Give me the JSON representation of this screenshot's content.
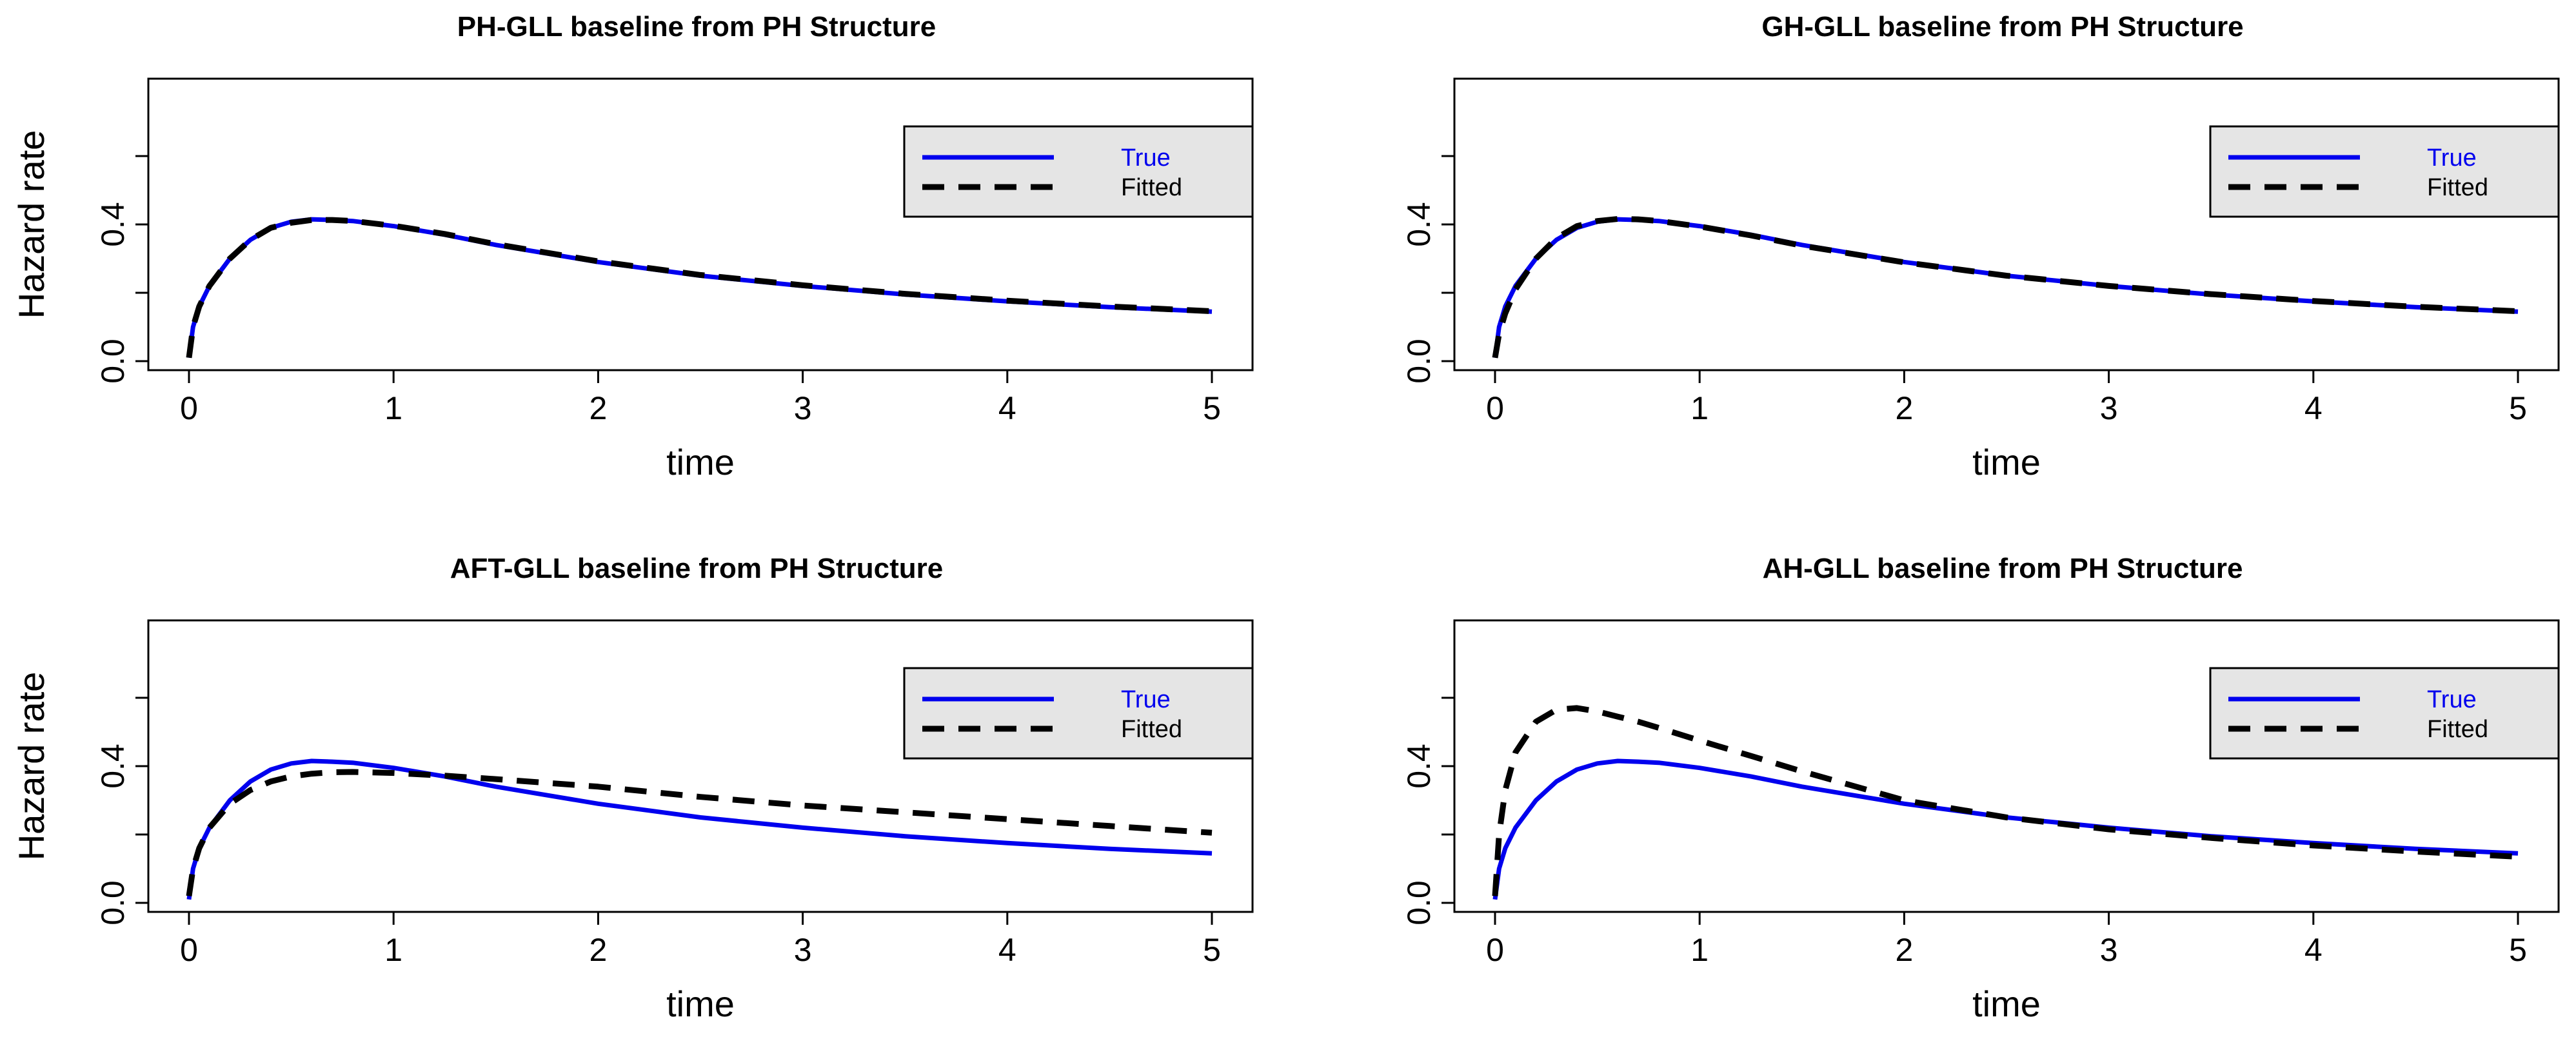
{
  "colors": {
    "true_line": "#0000ee",
    "fitted_line": "#000000",
    "legend_bg": "#e5e5e5"
  },
  "chart_data": [
    {
      "type": "line",
      "title": "PH-GLL baseline from PH Structure",
      "xlabel": "time",
      "ylabel": "Hazard rate",
      "xlim": [
        0,
        5
      ],
      "ylim": [
        0,
        0.8
      ],
      "xticks": [
        "0",
        "1",
        "2",
        "3",
        "4",
        "5"
      ],
      "yticks": [
        "0.0",
        "0.4"
      ],
      "legend_position": "top-right",
      "x": [
        0,
        0.02,
        0.05,
        0.1,
        0.2,
        0.3,
        0.4,
        0.5,
        0.6,
        0.7,
        0.8,
        1.0,
        1.25,
        1.5,
        2.0,
        2.5,
        3.0,
        3.5,
        4.0,
        4.5,
        5.0
      ],
      "series": [
        {
          "name": "True",
          "style": "solid",
          "values": [
            0.01,
            0.1,
            0.16,
            0.22,
            0.3,
            0.355,
            0.39,
            0.408,
            0.415,
            0.413,
            0.41,
            0.395,
            0.37,
            0.34,
            0.29,
            0.25,
            0.22,
            0.195,
            0.175,
            0.158,
            0.145
          ]
        },
        {
          "name": "Fitted",
          "style": "dashed",
          "values": [
            0.01,
            0.1,
            0.16,
            0.22,
            0.3,
            0.355,
            0.39,
            0.405,
            0.413,
            0.413,
            0.41,
            0.396,
            0.372,
            0.342,
            0.292,
            0.252,
            0.222,
            0.197,
            0.177,
            0.16,
            0.146
          ]
        }
      ]
    },
    {
      "type": "line",
      "title": "GH-GLL baseline from PH Structure",
      "xlabel": "time",
      "ylabel": "Hazard rate",
      "xlim": [
        0,
        5
      ],
      "ylim": [
        0,
        0.8
      ],
      "xticks": [
        "0",
        "1",
        "2",
        "3",
        "4",
        "5"
      ],
      "yticks": [
        "0.0",
        "0.4"
      ],
      "legend_position": "top-right",
      "x": [
        0,
        0.02,
        0.05,
        0.1,
        0.2,
        0.3,
        0.4,
        0.5,
        0.6,
        0.7,
        0.8,
        1.0,
        1.25,
        1.5,
        2.0,
        2.5,
        3.0,
        3.5,
        4.0,
        4.5,
        5.0
      ],
      "series": [
        {
          "name": "True",
          "style": "solid",
          "values": [
            0.01,
            0.1,
            0.16,
            0.22,
            0.3,
            0.355,
            0.39,
            0.408,
            0.415,
            0.413,
            0.41,
            0.395,
            0.37,
            0.34,
            0.29,
            0.25,
            0.22,
            0.195,
            0.175,
            0.158,
            0.145
          ]
        },
        {
          "name": "Fitted",
          "style": "dashed",
          "values": [
            0.01,
            0.08,
            0.14,
            0.21,
            0.3,
            0.36,
            0.395,
            0.41,
            0.416,
            0.415,
            0.41,
            0.394,
            0.368,
            0.338,
            0.289,
            0.25,
            0.22,
            0.196,
            0.176,
            0.159,
            0.146
          ]
        }
      ]
    },
    {
      "type": "line",
      "title": "AFT-GLL baseline from PH Structure",
      "xlabel": "time",
      "ylabel": "Hazard rate",
      "xlim": [
        0,
        5
      ],
      "ylim": [
        0,
        0.8
      ],
      "xticks": [
        "0",
        "1",
        "2",
        "3",
        "4",
        "5"
      ],
      "yticks": [
        "0.0",
        "0.4"
      ],
      "legend_position": "top-right",
      "x": [
        0,
        0.02,
        0.05,
        0.1,
        0.2,
        0.3,
        0.4,
        0.5,
        0.6,
        0.7,
        0.8,
        1.0,
        1.25,
        1.5,
        2.0,
        2.5,
        3.0,
        3.5,
        4.0,
        4.5,
        5.0
      ],
      "series": [
        {
          "name": "True",
          "style": "solid",
          "values": [
            0.01,
            0.1,
            0.16,
            0.22,
            0.3,
            0.355,
            0.39,
            0.408,
            0.415,
            0.413,
            0.41,
            0.395,
            0.37,
            0.34,
            0.29,
            0.25,
            0.22,
            0.195,
            0.175,
            0.158,
            0.145
          ]
        },
        {
          "name": "Fitted",
          "style": "dashed",
          "values": [
            0.02,
            0.1,
            0.16,
            0.22,
            0.29,
            0.33,
            0.355,
            0.37,
            0.378,
            0.382,
            0.383,
            0.38,
            0.372,
            0.362,
            0.34,
            0.31,
            0.285,
            0.265,
            0.245,
            0.225,
            0.205
          ]
        }
      ]
    },
    {
      "type": "line",
      "title": "AH-GLL baseline from PH Structure",
      "xlabel": "time",
      "ylabel": "Hazard rate",
      "xlim": [
        0,
        5
      ],
      "ylim": [
        0,
        0.8
      ],
      "xticks": [
        "0",
        "1",
        "2",
        "3",
        "4",
        "5"
      ],
      "yticks": [
        "0.0",
        "0.4"
      ],
      "legend_position": "top-right",
      "x": [
        0,
        0.02,
        0.05,
        0.1,
        0.2,
        0.3,
        0.4,
        0.5,
        0.6,
        0.7,
        0.8,
        1.0,
        1.25,
        1.5,
        2.0,
        2.5,
        3.0,
        3.5,
        4.0,
        4.5,
        5.0
      ],
      "series": [
        {
          "name": "True",
          "style": "solid",
          "values": [
            0.01,
            0.1,
            0.16,
            0.22,
            0.3,
            0.355,
            0.39,
            0.408,
            0.415,
            0.413,
            0.41,
            0.395,
            0.37,
            0.34,
            0.29,
            0.25,
            0.22,
            0.195,
            0.175,
            0.158,
            0.145
          ]
        },
        {
          "name": "Fitted",
          "style": "dashed",
          "values": [
            0.02,
            0.2,
            0.33,
            0.44,
            0.53,
            0.565,
            0.57,
            0.56,
            0.545,
            0.53,
            0.512,
            0.475,
            0.43,
            0.385,
            0.3,
            0.25,
            0.215,
            0.19,
            0.168,
            0.15,
            0.135
          ]
        }
      ]
    }
  ]
}
